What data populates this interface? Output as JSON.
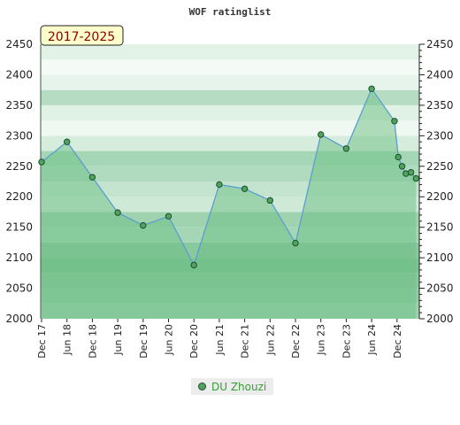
{
  "chart_data": {
    "type": "area",
    "title": "WOF ratinglist",
    "period_label": "2017-2025",
    "ylim": [
      2000,
      2450
    ],
    "yticks": [
      2000,
      2050,
      2100,
      2150,
      2200,
      2250,
      2300,
      2350,
      2400,
      2450
    ],
    "categories": [
      "Dec 17",
      "Jun 18",
      "Dec 18",
      "Jun 19",
      "Dec 19",
      "Jun 20",
      "Dec 20",
      "Jun 21",
      "Dec 21",
      "Jun 22",
      "Dec 22",
      "Jun 23",
      "Dec 23",
      "Jun 24",
      "Dec 24"
    ],
    "series": [
      {
        "name": "DU Zhouzi",
        "x": [
          0,
          1,
          2,
          3,
          4,
          5,
          6,
          7,
          8,
          9,
          10,
          11,
          12,
          13,
          13.9,
          14.05,
          14.2,
          14.35,
          14.55,
          14.75
        ],
        "values": [
          2257,
          2290,
          2232,
          2174,
          2153,
          2168,
          2088,
          2220,
          2213,
          2194,
          2124,
          2302,
          2279,
          2377,
          2324,
          2265,
          2250,
          2238,
          2240,
          2230
        ]
      }
    ],
    "legend_position": "bottom",
    "colors": {
      "line": "#5a9fd0",
      "area": "#6cbf84",
      "marker_fill": "#4fa35f",
      "marker_stroke": "#1f4d2a",
      "period_bg": "#ffffcc",
      "period_text": "#8a0000"
    }
  }
}
